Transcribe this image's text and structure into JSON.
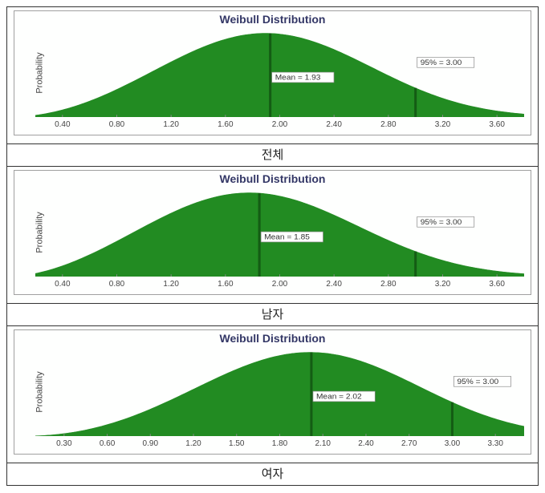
{
  "charts": [
    {
      "title": "Weibull Distribution",
      "ylabel": "Probability",
      "caption": "전체",
      "type": "weibull-density",
      "fill_color": "#228b22",
      "line_color": "#145c14",
      "background_color": "#fefffe",
      "title_color": "#333766",
      "title_fontsize": 14,
      "tick_fontsize": 10,
      "xmin": 0.2,
      "xmax": 3.8,
      "xtick_start": 0.4,
      "xtick_step": 0.4,
      "xticks": [
        "0.40",
        "0.80",
        "1.20",
        "1.60",
        "2.00",
        "2.40",
        "2.80",
        "3.20",
        "3.60"
      ],
      "shape_k": 3.0,
      "scale_lambda": 2.17,
      "mean_line": {
        "x": 1.93,
        "label": "Mean = 1.93"
      },
      "p95_line": {
        "x": 3.0,
        "label": "95% = 3.00"
      }
    },
    {
      "title": "Weibull Distribution",
      "ylabel": "Probability",
      "caption": "남자",
      "type": "weibull-density",
      "fill_color": "#228b22",
      "line_color": "#145c14",
      "background_color": "#fefffe",
      "title_color": "#333766",
      "title_fontsize": 14,
      "tick_fontsize": 10,
      "xmin": 0.2,
      "xmax": 3.8,
      "xtick_start": 0.4,
      "xtick_step": 0.4,
      "xticks": [
        "0.40",
        "0.80",
        "1.20",
        "1.60",
        "2.00",
        "2.40",
        "2.80",
        "3.20",
        "3.60"
      ],
      "shape_k": 2.8,
      "scale_lambda": 2.08,
      "mean_line": {
        "x": 1.85,
        "label": "Mean = 1.85"
      },
      "p95_line": {
        "x": 3.0,
        "label": "95% = 3.00"
      }
    },
    {
      "title": "Weibull Distribution",
      "ylabel": "Probability",
      "caption": "여자",
      "type": "weibull-density",
      "fill_color": "#228b22",
      "line_color": "#145c14",
      "background_color": "#fefffe",
      "title_color": "#333766",
      "title_fontsize": 14,
      "tick_fontsize": 10,
      "xmin": 0.1,
      "xmax": 3.5,
      "xtick_start": 0.3,
      "xtick_step": 0.3,
      "xticks": [
        "0.30",
        "0.60",
        "0.90",
        "1.20",
        "1.50",
        "1.80",
        "2.10",
        "2.40",
        "2.70",
        "3.00",
        "3.30"
      ],
      "shape_k": 3.2,
      "scale_lambda": 2.26,
      "mean_line": {
        "x": 2.02,
        "label": "Mean = 2.02"
      },
      "p95_line": {
        "x": 3.0,
        "label": "95% = 3.00"
      }
    }
  ]
}
